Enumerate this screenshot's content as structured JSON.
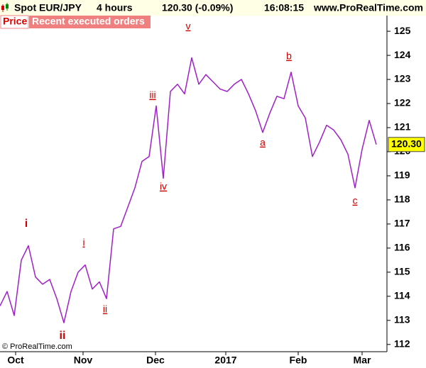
{
  "header": {
    "instrument": "Spot EUR/JPY",
    "period": "4 hours",
    "quote": "120.30 (-0.09%)",
    "time": "16:08:15",
    "site": "www.ProRealTime.com"
  },
  "tabs": [
    "Price",
    "Recent executed orders"
  ],
  "copyright": "© ProRealTime.com",
  "chart_data": {
    "type": "line",
    "series": [
      {
        "name": "Price",
        "color": "#a020c8",
        "values": [
          113.6,
          114.2,
          113.2,
          115.5,
          116.1,
          114.8,
          114.5,
          114.7,
          113.9,
          112.9,
          114.2,
          115.0,
          115.3,
          114.3,
          114.6,
          113.9,
          116.8,
          116.9,
          117.7,
          118.5,
          119.6,
          119.8,
          121.9,
          118.9,
          122.5,
          122.8,
          122.4,
          123.9,
          122.8,
          123.2,
          122.9,
          122.6,
          122.5,
          122.8,
          123.0,
          122.4,
          121.7,
          120.8,
          121.6,
          122.3,
          122.2,
          123.3,
          121.9,
          121.4,
          119.8,
          120.4,
          121.1,
          120.9,
          120.5,
          119.9,
          118.5,
          120.1,
          121.3,
          120.3
        ]
      }
    ],
    "last_price": {
      "value": 120.3,
      "label": "120.30"
    },
    "xlim": [
      0,
      54.3
    ],
    "xticks": [
      {
        "value": 2.2,
        "label": "Oct"
      },
      {
        "value": 11.7,
        "label": "Nov"
      },
      {
        "value": 21.9,
        "label": "Dec"
      },
      {
        "value": 31.8,
        "label": "2017"
      },
      {
        "value": 42,
        "label": "Feb"
      },
      {
        "value": 51,
        "label": "Mar"
      }
    ],
    "ylim": [
      111.7,
      125.65
    ],
    "yticks": [
      112,
      113,
      114,
      115,
      116,
      117,
      118,
      119,
      120,
      121,
      122,
      123,
      124,
      125
    ],
    "annotations": [
      "i",
      "ii",
      "i",
      "ii",
      "iii",
      "iv",
      "v",
      "a",
      "b",
      "c"
    ]
  }
}
